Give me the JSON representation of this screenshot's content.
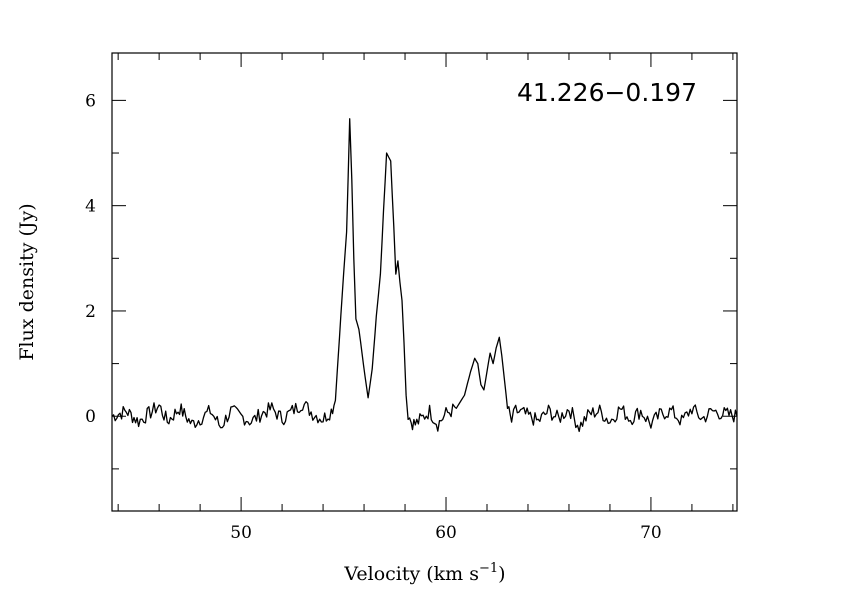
{
  "chart_data": {
    "type": "line",
    "title": "41.226−0.197",
    "xlabel": "Velocity (km s",
    "xlabel_sup": "−1",
    "xlabel_tail": ")",
    "ylabel": "Flux density (Jy)",
    "xlim": [
      43.7,
      74.2
    ],
    "ylim": [
      -1.8,
      6.9
    ],
    "x_ticks": [
      50,
      60,
      70
    ],
    "x_tick_labels": [
      "50",
      "60",
      "70"
    ],
    "y_ticks": [
      0,
      2,
      4,
      6
    ],
    "y_tick_labels": [
      "0",
      "2",
      "4",
      "6"
    ],
    "grid": false,
    "series": [
      {
        "color": "#000000",
        "x": [
          43.7,
          44.4,
          45.0,
          45.5,
          46.0,
          46.4,
          47.0,
          47.6,
          48.0,
          48.5,
          49.0,
          49.5,
          50.0,
          50.5,
          51.0,
          51.5,
          52.0,
          52.5,
          53.0,
          53.5,
          54.0,
          54.4,
          54.6,
          54.8,
          55.0,
          55.15,
          55.3,
          55.4,
          55.5,
          55.6,
          55.75,
          55.9,
          56.05,
          56.2,
          56.4,
          56.6,
          56.8,
          56.95,
          57.1,
          57.3,
          57.45,
          57.55,
          57.65,
          57.75,
          57.85,
          57.95,
          58.05,
          58.15,
          58.3,
          58.5,
          58.8,
          59.2,
          59.6,
          60.0,
          60.5,
          60.9,
          61.2,
          61.4,
          61.55,
          61.7,
          61.85,
          62.0,
          62.15,
          62.3,
          62.45,
          62.6,
          62.72,
          62.85,
          63.0,
          63.2,
          63.4,
          63.8,
          64.5,
          65.0,
          65.5,
          66.0,
          66.5,
          67.0,
          67.5,
          68.0,
          68.5,
          69.0,
          69.5,
          70.0,
          70.5,
          71.0,
          71.5,
          72.0,
          72.5,
          73.0,
          73.5,
          74.2
        ],
        "y": [
          0.0,
          0.1,
          -0.1,
          0.05,
          0.2,
          -0.1,
          0.15,
          -0.15,
          -0.05,
          0.1,
          -0.2,
          0.1,
          0.0,
          -0.1,
          0.05,
          0.15,
          -0.05,
          0.1,
          0.25,
          0.05,
          -0.05,
          0.1,
          0.3,
          1.5,
          2.7,
          3.5,
          5.65,
          4.5,
          3.0,
          1.85,
          1.65,
          1.2,
          0.75,
          0.35,
          0.9,
          1.9,
          2.7,
          3.9,
          5.0,
          4.85,
          3.6,
          2.7,
          2.95,
          2.55,
          2.2,
          1.4,
          0.4,
          0.05,
          -0.1,
          -0.15,
          -0.05,
          0.1,
          -0.15,
          0.05,
          0.15,
          0.4,
          0.85,
          1.1,
          1.0,
          0.6,
          0.5,
          0.85,
          1.2,
          1.0,
          1.3,
          1.5,
          1.15,
          0.7,
          0.15,
          -0.1,
          0.1,
          0.05,
          -0.1,
          0.1,
          -0.05,
          0.15,
          -0.2,
          0.05,
          0.1,
          -0.1,
          0.15,
          -0.05,
          0.1,
          -0.15,
          0.05,
          0.1,
          -0.1,
          0.15,
          -0.05,
          0.1,
          0.05,
          0.0
        ]
      }
    ]
  }
}
